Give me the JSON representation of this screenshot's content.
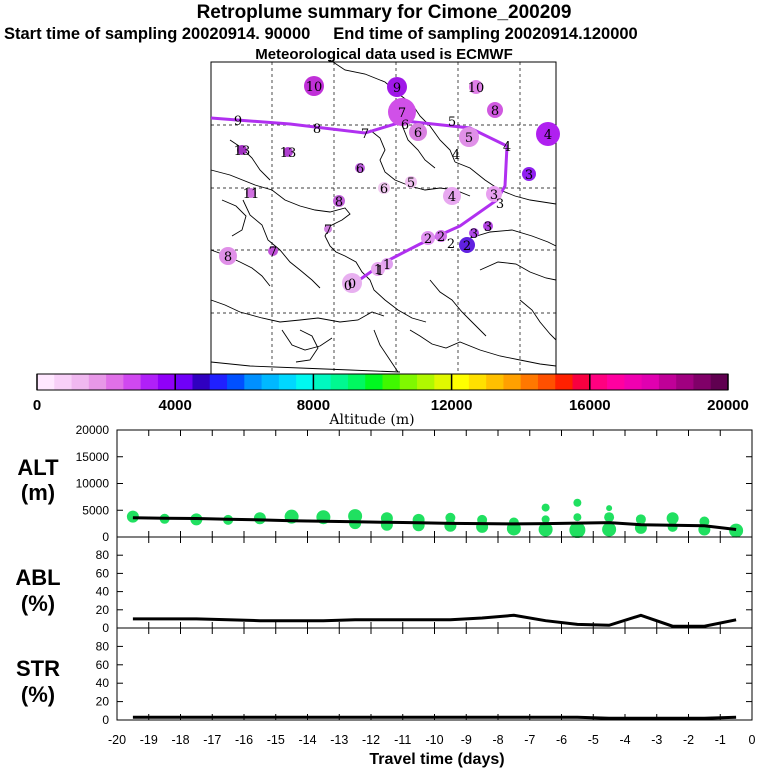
{
  "header": {
    "title": "Retroplume summary for Cimone_200209",
    "sampling_line": "Start time of sampling 20020914. 90000     End time of sampling 20020914.120000",
    "met_line": "Meteorological data used is ECMWF"
  },
  "colorbar": {
    "label": "Altitude (m)",
    "ticks": [
      "0",
      "4000",
      "8000",
      "12000",
      "16000",
      "20000"
    ],
    "min": 0,
    "max": 20000,
    "colors": [
      "#ffe8ff",
      "#f8d0f8",
      "#f0b8f0",
      "#e898e8",
      "#e070e8",
      "#d048f0",
      "#b020f8",
      "#9000f8",
      "#7000f8",
      "#3000c0",
      "#2020ff",
      "#0050ff",
      "#0090ff",
      "#00b8ff",
      "#00d8ff",
      "#00f8f0",
      "#00f8c0",
      "#00f890",
      "#00f860",
      "#00f820",
      "#40f800",
      "#80f800",
      "#b0f800",
      "#e0f800",
      "#ffff00",
      "#ffe000",
      "#ffc000",
      "#ffa000",
      "#ff7800",
      "#ff5000",
      "#ff2000",
      "#f80040",
      "#ff0080",
      "#ff00a0",
      "#f000b0",
      "#e000b0",
      "#c00098",
      "#a00080",
      "#800068",
      "#600050"
    ]
  },
  "map": {
    "points": [
      {
        "label": "10",
        "color": "#c030d8",
        "r": 10
      },
      {
        "label": "9",
        "color": "#a018e8",
        "r": 10
      },
      {
        "label": "10",
        "color": "#e080e8",
        "r": 7
      },
      {
        "label": "8",
        "color": "#d058e0",
        "r": 8
      },
      {
        "label": "7",
        "color": "#d050e8",
        "r": 14
      },
      {
        "label": "6",
        "color": "#d880e0",
        "r": 9
      },
      {
        "label": "5",
        "color": "#e090e8",
        "r": 10
      },
      {
        "label": "4",
        "color": "#b020f0",
        "r": 12
      },
      {
        "label": "9",
        "color": "#000000",
        "r": 0
      },
      {
        "label": "8",
        "color": "#000000",
        "r": 0
      },
      {
        "label": "7",
        "color": "#000000",
        "r": 0
      },
      {
        "label": "6",
        "color": "#000000",
        "r": 0
      },
      {
        "label": "5",
        "color": "#000000",
        "r": 0
      },
      {
        "label": "4",
        "color": "#000000",
        "r": 0
      },
      {
        "label": "13",
        "color": "#a030c0",
        "r": 5
      },
      {
        "label": "13",
        "color": "#b040d0",
        "r": 5
      },
      {
        "label": "4",
        "color": "#000000",
        "r": 0
      },
      {
        "label": "6",
        "color": "#c060e0",
        "r": 5
      },
      {
        "label": "3",
        "color": "#9020f0",
        "r": 7
      },
      {
        "label": "5",
        "color": "#f0c0f0",
        "r": 6
      },
      {
        "label": "6",
        "color": "#f0c8f0",
        "r": 6
      },
      {
        "label": "4",
        "color": "#e8a8f0",
        "r": 9
      },
      {
        "label": "3",
        "color": "#e8a0f0",
        "r": 8
      },
      {
        "label": "3",
        "color": "#000000",
        "r": 0
      },
      {
        "label": "11",
        "color": "#d070e0",
        "r": 5
      },
      {
        "label": "8",
        "color": "#c060d8",
        "r": 6
      },
      {
        "label": "7",
        "color": "#d080e0",
        "r": 4
      },
      {
        "label": "3",
        "color": "#b040e0",
        "r": 5
      },
      {
        "label": "2",
        "color": "#e090f0",
        "r": 7
      },
      {
        "label": "2",
        "color": "#d070e8",
        "r": 6
      },
      {
        "label": "2",
        "color": "#6020e0",
        "r": 8
      },
      {
        "label": "3",
        "color": "#b048e8",
        "r": 5
      },
      {
        "label": "2",
        "color": "#000000",
        "r": 0
      },
      {
        "label": "7",
        "color": "#c050d8",
        "r": 5
      },
      {
        "label": "8",
        "color": "#e090e8",
        "r": 9
      },
      {
        "label": "1",
        "color": "#e0a0f0",
        "r": 6
      },
      {
        "label": "1",
        "color": "#e8a8f0",
        "r": 7
      },
      {
        "label": "0",
        "color": "#e8b0f0",
        "r": 10
      },
      {
        "label": "1",
        "color": "#000000",
        "r": 0
      },
      {
        "label": "0",
        "color": "#000000",
        "r": 0
      }
    ]
  },
  "panels": [
    {
      "title": "ALT",
      "unit": "(m)",
      "ticks": [
        "0",
        "5000",
        "10000",
        "15000",
        "20000"
      ]
    },
    {
      "title": "ABL",
      "unit": "(%)",
      "ticks": [
        "0",
        "20",
        "40",
        "60",
        "80"
      ]
    },
    {
      "title": "STR",
      "unit": "(%)",
      "ticks": [
        "0",
        "20",
        "40",
        "60",
        "80"
      ]
    }
  ],
  "chart_data": [
    {
      "type": "line",
      "title": "ALT (m)",
      "xlabel": "Travel time (days)",
      "ylabel": "ALT (m)",
      "xlim": [
        -20,
        0
      ],
      "ylim": [
        0,
        20000
      ],
      "x": [
        -19.5,
        -18.5,
        -17.5,
        -16.5,
        -15.5,
        -14.5,
        -13.5,
        -12.5,
        -11.5,
        -10.5,
        -9.5,
        -8.5,
        -7.5,
        -6.5,
        -5.5,
        -4.5,
        -3.5,
        -2.5,
        -1.5,
        -0.5
      ],
      "values": [
        3600,
        3500,
        3450,
        3300,
        3200,
        3050,
        2950,
        2850,
        2750,
        2650,
        2550,
        2500,
        2450,
        2500,
        2600,
        2700,
        2300,
        2200,
        2100,
        1400
      ],
      "scatter_color": "#20e060",
      "scatter": [
        {
          "x": -19.5,
          "y": 3800,
          "r": 6
        },
        {
          "x": -18.5,
          "y": 3400,
          "r": 5
        },
        {
          "x": -17.5,
          "y": 3300,
          "r": 6
        },
        {
          "x": -16.5,
          "y": 3200,
          "r": 5
        },
        {
          "x": -15.5,
          "y": 3500,
          "r": 6
        },
        {
          "x": -14.5,
          "y": 3800,
          "r": 7
        },
        {
          "x": -13.5,
          "y": 3700,
          "r": 7
        },
        {
          "x": -12.5,
          "y": 3900,
          "r": 7
        },
        {
          "x": -12.5,
          "y": 2600,
          "r": 6
        },
        {
          "x": -11.5,
          "y": 3500,
          "r": 6
        },
        {
          "x": -11.5,
          "y": 2300,
          "r": 6
        },
        {
          "x": -10.5,
          "y": 3200,
          "r": 6
        },
        {
          "x": -10.5,
          "y": 2200,
          "r": 6
        },
        {
          "x": -9.5,
          "y": 3600,
          "r": 5
        },
        {
          "x": -9.5,
          "y": 2100,
          "r": 6
        },
        {
          "x": -8.5,
          "y": 3200,
          "r": 5
        },
        {
          "x": -8.5,
          "y": 1900,
          "r": 6
        },
        {
          "x": -7.5,
          "y": 2700,
          "r": 5
        },
        {
          "x": -7.5,
          "y": 1600,
          "r": 7
        },
        {
          "x": -6.5,
          "y": 5500,
          "r": 4
        },
        {
          "x": -6.5,
          "y": 3300,
          "r": 4
        },
        {
          "x": -6.5,
          "y": 1400,
          "r": 7
        },
        {
          "x": -5.5,
          "y": 6400,
          "r": 4
        },
        {
          "x": -5.5,
          "y": 3700,
          "r": 4
        },
        {
          "x": -5.5,
          "y": 1300,
          "r": 8
        },
        {
          "x": -4.5,
          "y": 5400,
          "r": 3
        },
        {
          "x": -4.5,
          "y": 3700,
          "r": 5
        },
        {
          "x": -4.5,
          "y": 1400,
          "r": 7
        },
        {
          "x": -3.5,
          "y": 3300,
          "r": 5
        },
        {
          "x": -3.5,
          "y": 1700,
          "r": 6
        },
        {
          "x": -2.5,
          "y": 3500,
          "r": 6
        },
        {
          "x": -2.5,
          "y": 1900,
          "r": 5
        },
        {
          "x": -1.5,
          "y": 2900,
          "r": 5
        },
        {
          "x": -1.5,
          "y": 1400,
          "r": 6
        },
        {
          "x": -0.5,
          "y": 1200,
          "r": 7
        }
      ]
    },
    {
      "type": "line",
      "title": "ABL (%)",
      "xlabel": "Travel time (days)",
      "ylabel": "ABL (%)",
      "xlim": [
        -20,
        0
      ],
      "ylim": [
        0,
        100
      ],
      "x": [
        -19.5,
        -18.5,
        -17.5,
        -16.5,
        -15.5,
        -14.5,
        -13.5,
        -12.5,
        -11.5,
        -10.5,
        -9.5,
        -8.5,
        -7.5,
        -6.5,
        -5.5,
        -4.5,
        -3.5,
        -2.5,
        -1.5,
        -0.5
      ],
      "values": [
        10,
        10,
        10,
        9,
        8,
        8,
        8,
        9,
        9,
        9,
        9,
        11,
        14,
        8,
        4,
        3,
        14,
        2,
        2,
        9
      ]
    },
    {
      "type": "line",
      "title": "STR (%)",
      "xlabel": "Travel time (days)",
      "ylabel": "STR (%)",
      "xlim": [
        -20,
        0
      ],
      "ylim": [
        0,
        100
      ],
      "x": [
        -19.5,
        -18.5,
        -17.5,
        -16.5,
        -15.5,
        -14.5,
        -13.5,
        -12.5,
        -11.5,
        -10.5,
        -9.5,
        -8.5,
        -7.5,
        -6.5,
        -5.5,
        -4.5,
        -3.5,
        -2.5,
        -1.5,
        -0.5
      ],
      "values": [
        3,
        3,
        3,
        3,
        3,
        3,
        3,
        3,
        3,
        3,
        3,
        3,
        3,
        3,
        3,
        2,
        2,
        2,
        2,
        3
      ]
    }
  ],
  "xaxis": {
    "label": "Travel time (days)",
    "ticks": [
      "-20",
      "-19",
      "-18",
      "-17",
      "-16",
      "-15",
      "-14",
      "-13",
      "-12",
      "-11",
      "-10",
      "-9",
      "-8",
      "-7",
      "-6",
      "-5",
      "-4",
      "-3",
      "-2",
      "-1",
      "0"
    ]
  }
}
